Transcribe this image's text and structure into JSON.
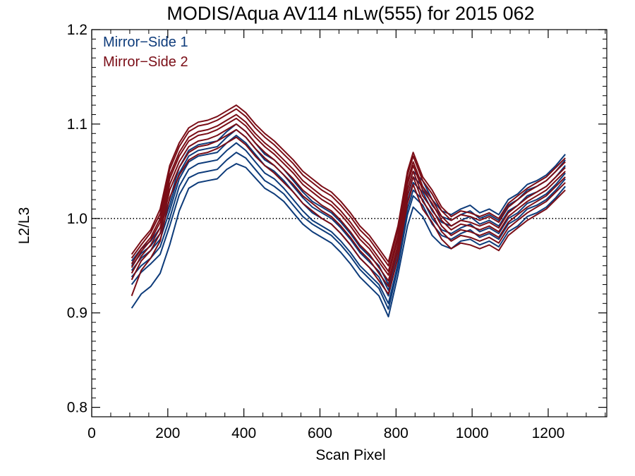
{
  "chart_data": {
    "type": "line",
    "title": "MODIS/Aqua AV114 nLw(555) for 2015 062",
    "xlabel": "Scan Pixel",
    "ylabel": "L2/L3",
    "xlim": [
      0,
      1354
    ],
    "ylim": [
      0.79,
      1.2
    ],
    "x_ticks": [
      0,
      200,
      400,
      600,
      800,
      1000,
      1200
    ],
    "x_tick_labels": [
      "0",
      "200",
      "400",
      "600",
      "800",
      "1000",
      "1200"
    ],
    "y_ticks": [
      0.8,
      0.9,
      1.0,
      1.1,
      1.2
    ],
    "y_tick_labels": [
      "0.8",
      "0.9",
      "1.0",
      "1.1",
      "1.2"
    ],
    "reference_line": {
      "y": 1.0,
      "style": "dotted"
    },
    "grid": false,
    "legend_position": "top-left",
    "legend": [
      {
        "label": "Mirror−Side 1",
        "color": "#0d3b7a"
      },
      {
        "label": "Mirror−Side 2",
        "color": "#7a0d16"
      }
    ],
    "x": [
      105,
      130,
      155,
      180,
      205,
      230,
      255,
      280,
      305,
      330,
      355,
      380,
      405,
      430,
      455,
      480,
      505,
      530,
      555,
      580,
      605,
      630,
      655,
      680,
      705,
      730,
      755,
      780,
      805,
      830,
      845,
      870,
      895,
      920,
      945,
      970,
      995,
      1020,
      1045,
      1070,
      1095,
      1120,
      1145,
      1170,
      1195,
      1220,
      1245
    ],
    "series": [
      {
        "group": 1,
        "color": "#0d3b7a",
        "values": [
          0.905,
          0.92,
          0.928,
          0.942,
          0.972,
          1.008,
          1.032,
          1.038,
          1.04,
          1.042,
          1.052,
          1.058,
          1.054,
          1.043,
          1.032,
          1.026,
          1.018,
          1.006,
          0.994,
          0.986,
          0.98,
          0.974,
          0.964,
          0.952,
          0.938,
          0.928,
          0.918,
          0.896,
          0.94,
          0.992,
          1.012,
          1.002,
          0.982,
          0.972,
          0.968,
          0.976,
          0.978,
          0.972,
          0.976,
          0.97,
          0.986,
          0.992,
          1.002,
          1.006,
          1.012,
          1.022,
          1.034
        ]
      },
      {
        "group": 1,
        "color": "#0d3b7a",
        "values": [
          0.93,
          0.943,
          0.952,
          0.962,
          0.992,
          1.025,
          1.043,
          1.048,
          1.05,
          1.052,
          1.062,
          1.07,
          1.064,
          1.052,
          1.04,
          1.034,
          1.026,
          1.014,
          1.002,
          0.994,
          0.988,
          0.982,
          0.972,
          0.96,
          0.946,
          0.936,
          0.926,
          0.904,
          0.948,
          1.004,
          1.024,
          1.014,
          0.994,
          0.982,
          0.978,
          0.984,
          0.988,
          0.98,
          0.984,
          0.978,
          0.994,
          1.0,
          1.01,
          1.014,
          1.02,
          1.03,
          1.042
        ]
      },
      {
        "group": 1,
        "color": "#0d3b7a",
        "values": [
          0.938,
          0.95,
          0.958,
          0.97,
          1.0,
          1.034,
          1.052,
          1.058,
          1.06,
          1.062,
          1.072,
          1.08,
          1.072,
          1.06,
          1.048,
          1.042,
          1.032,
          1.02,
          1.008,
          0.998,
          0.992,
          0.986,
          0.976,
          0.964,
          0.95,
          0.94,
          0.93,
          0.91,
          0.952,
          1.01,
          1.03,
          1.02,
          1.0,
          0.988,
          0.984,
          0.99,
          0.994,
          0.986,
          0.99,
          0.984,
          1.0,
          1.006,
          1.016,
          1.02,
          1.026,
          1.036,
          1.048
        ]
      },
      {
        "group": 1,
        "color": "#0d3b7a",
        "values": [
          0.945,
          0.958,
          0.966,
          0.978,
          1.008,
          1.042,
          1.06,
          1.066,
          1.068,
          1.07,
          1.08,
          1.088,
          1.08,
          1.068,
          1.056,
          1.05,
          1.04,
          1.028,
          1.016,
          1.006,
          1.0,
          0.994,
          0.984,
          0.972,
          0.958,
          0.948,
          0.938,
          0.918,
          0.96,
          1.018,
          1.038,
          1.028,
          1.008,
          0.996,
          0.992,
          0.998,
          1.002,
          0.994,
          0.998,
          0.992,
          1.008,
          1.014,
          1.024,
          1.028,
          1.034,
          1.044,
          1.056
        ]
      },
      {
        "group": 1,
        "color": "#0d3b7a",
        "values": [
          0.95,
          0.963,
          0.971,
          0.984,
          1.014,
          1.048,
          1.066,
          1.072,
          1.074,
          1.076,
          1.086,
          1.094,
          1.086,
          1.074,
          1.062,
          1.056,
          1.046,
          1.034,
          1.022,
          1.012,
          1.006,
          1.0,
          0.99,
          0.978,
          0.964,
          0.954,
          0.944,
          0.924,
          0.966,
          1.024,
          1.044,
          1.034,
          1.014,
          1.002,
          0.998,
          1.004,
          1.008,
          1.0,
          1.004,
          0.998,
          1.014,
          1.02,
          1.03,
          1.034,
          1.04,
          1.05,
          1.062
        ]
      },
      {
        "group": 1,
        "color": "#0d3b7a",
        "values": [
          0.955,
          0.968,
          0.976,
          0.99,
          1.02,
          1.054,
          1.072,
          1.078,
          1.08,
          1.082,
          1.092,
          1.1,
          1.092,
          1.08,
          1.068,
          1.062,
          1.052,
          1.04,
          1.028,
          1.018,
          1.012,
          1.006,
          0.996,
          0.984,
          0.97,
          0.96,
          0.95,
          0.93,
          0.972,
          1.03,
          1.05,
          1.04,
          1.02,
          1.008,
          1.004,
          1.01,
          1.014,
          1.006,
          1.01,
          1.004,
          1.02,
          1.026,
          1.036,
          1.04,
          1.046,
          1.056,
          1.068
        ]
      },
      {
        "group": 2,
        "color": "#7a0d16",
        "values": [
          0.918,
          0.945,
          0.958,
          0.976,
          1.022,
          1.046,
          1.062,
          1.068,
          1.07,
          1.074,
          1.08,
          1.086,
          1.078,
          1.066,
          1.056,
          1.048,
          1.038,
          1.028,
          1.016,
          1.008,
          1.0,
          0.994,
          0.984,
          0.972,
          0.958,
          0.948,
          0.934,
          0.92,
          0.958,
          1.016,
          1.036,
          1.01,
          0.996,
          0.978,
          0.968,
          0.974,
          0.972,
          0.968,
          0.972,
          0.966,
          0.982,
          0.99,
          0.998,
          1.004,
          1.01,
          1.02,
          1.03
        ]
      },
      {
        "group": 2,
        "color": "#7a0d16",
        "values": [
          0.935,
          0.955,
          0.966,
          0.984,
          1.03,
          1.054,
          1.07,
          1.076,
          1.078,
          1.082,
          1.088,
          1.094,
          1.086,
          1.074,
          1.064,
          1.056,
          1.046,
          1.036,
          1.024,
          1.016,
          1.008,
          1.002,
          0.992,
          0.98,
          0.966,
          0.956,
          0.942,
          0.928,
          0.966,
          1.024,
          1.044,
          1.018,
          1.004,
          0.986,
          0.976,
          0.982,
          0.98,
          0.976,
          0.98,
          0.974,
          0.99,
          0.998,
          1.006,
          1.012,
          1.018,
          1.028,
          1.038
        ]
      },
      {
        "group": 2,
        "color": "#7a0d16",
        "values": [
          0.942,
          0.96,
          0.972,
          0.99,
          1.036,
          1.06,
          1.076,
          1.082,
          1.084,
          1.088,
          1.094,
          1.1,
          1.092,
          1.08,
          1.07,
          1.062,
          1.052,
          1.042,
          1.03,
          1.022,
          1.014,
          1.008,
          0.998,
          0.986,
          0.972,
          0.962,
          0.948,
          0.934,
          0.972,
          1.03,
          1.05,
          1.024,
          1.01,
          0.992,
          0.982,
          0.988,
          0.986,
          0.982,
          0.986,
          0.98,
          0.996,
          1.004,
          1.012,
          1.018,
          1.024,
          1.034,
          1.044
        ]
      },
      {
        "group": 2,
        "color": "#7a0d16",
        "values": [
          0.948,
          0.965,
          0.977,
          0.996,
          1.042,
          1.066,
          1.082,
          1.088,
          1.09,
          1.094,
          1.1,
          1.106,
          1.098,
          1.086,
          1.076,
          1.068,
          1.058,
          1.048,
          1.036,
          1.028,
          1.02,
          1.014,
          1.004,
          0.992,
          0.978,
          0.968,
          0.954,
          0.94,
          0.978,
          1.036,
          1.056,
          1.03,
          1.016,
          0.998,
          0.988,
          0.994,
          0.992,
          0.988,
          0.992,
          0.986,
          1.002,
          1.01,
          1.018,
          1.024,
          1.03,
          1.04,
          1.05
        ]
      },
      {
        "group": 2,
        "color": "#7a0d16",
        "values": [
          0.952,
          0.968,
          0.98,
          1.0,
          1.046,
          1.07,
          1.086,
          1.092,
          1.094,
          1.098,
          1.104,
          1.11,
          1.102,
          1.09,
          1.08,
          1.072,
          1.062,
          1.052,
          1.04,
          1.032,
          1.024,
          1.018,
          1.008,
          0.996,
          0.982,
          0.972,
          0.958,
          0.944,
          0.982,
          1.04,
          1.06,
          1.034,
          1.02,
          1.002,
          0.992,
          0.998,
          0.996,
          0.992,
          0.996,
          0.99,
          1.006,
          1.014,
          1.022,
          1.028,
          1.034,
          1.044,
          1.054
        ]
      },
      {
        "group": 2,
        "color": "#7a0d16",
        "values": [
          0.958,
          0.972,
          0.985,
          1.005,
          1.052,
          1.076,
          1.092,
          1.098,
          1.1,
          1.104,
          1.11,
          1.116,
          1.108,
          1.096,
          1.086,
          1.078,
          1.068,
          1.058,
          1.046,
          1.038,
          1.03,
          1.024,
          1.014,
          1.002,
          0.988,
          0.978,
          0.964,
          0.95,
          0.988,
          1.046,
          1.066,
          1.04,
          1.026,
          1.008,
          0.998,
          1.004,
          1.002,
          0.998,
          1.002,
          0.996,
          1.012,
          1.02,
          1.028,
          1.034,
          1.04,
          1.05,
          1.06
        ]
      },
      {
        "group": 2,
        "color": "#7a0d16",
        "values": [
          0.962,
          0.976,
          0.988,
          1.01,
          1.056,
          1.08,
          1.096,
          1.102,
          1.104,
          1.108,
          1.114,
          1.12,
          1.112,
          1.1,
          1.09,
          1.082,
          1.072,
          1.062,
          1.05,
          1.042,
          1.034,
          1.028,
          1.018,
          1.006,
          0.992,
          0.982,
          0.968,
          0.954,
          0.992,
          1.05,
          1.07,
          1.044,
          1.03,
          1.012,
          1.002,
          1.008,
          1.006,
          1.002,
          1.006,
          1.0,
          1.016,
          1.024,
          1.032,
          1.038,
          1.044,
          1.054,
          1.064
        ]
      }
    ]
  }
}
